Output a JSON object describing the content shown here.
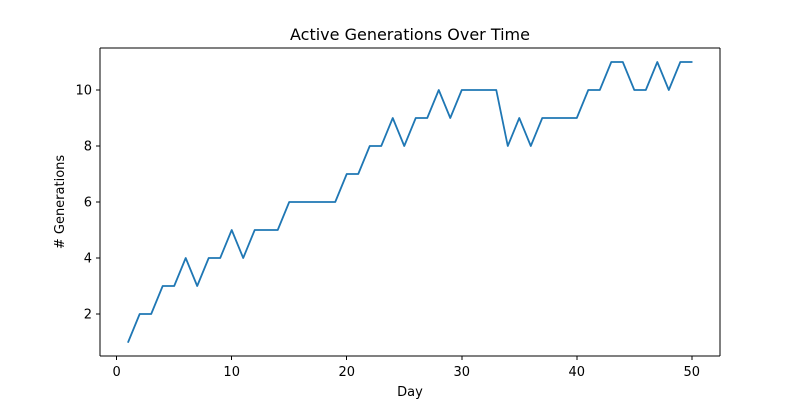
{
  "chart_data": {
    "type": "line",
    "title": "Active Generations Over Time",
    "xlabel": "Day",
    "ylabel": "# Generations",
    "xlim": [
      -1.45,
      52.45
    ],
    "ylim": [
      0.5,
      11.5
    ],
    "xticks": [
      0,
      10,
      20,
      30,
      40,
      50
    ],
    "yticks": [
      2,
      4,
      6,
      8,
      10
    ],
    "grid": false,
    "legend": "none",
    "series": [
      {
        "color": "#1f77b4",
        "x": [
          1,
          2,
          3,
          4,
          5,
          6,
          7,
          8,
          9,
          10,
          11,
          12,
          13,
          14,
          15,
          16,
          17,
          18,
          19,
          20,
          21,
          22,
          23,
          24,
          25,
          26,
          27,
          28,
          29,
          30,
          31,
          32,
          33,
          34,
          35,
          36,
          37,
          38,
          39,
          40,
          41,
          42,
          43,
          44,
          45,
          46,
          47,
          48,
          49,
          50
        ],
        "y": [
          1,
          2,
          2,
          3,
          3,
          4,
          3,
          4,
          4,
          5,
          4,
          5,
          5,
          5,
          6,
          6,
          6,
          6,
          6,
          7,
          7,
          8,
          8,
          9,
          8,
          9,
          9,
          10,
          9,
          10,
          10,
          10,
          10,
          8,
          9,
          8,
          9,
          9,
          9,
          9,
          10,
          10,
          11,
          11,
          10,
          10,
          11,
          10,
          11,
          11
        ]
      }
    ]
  }
}
